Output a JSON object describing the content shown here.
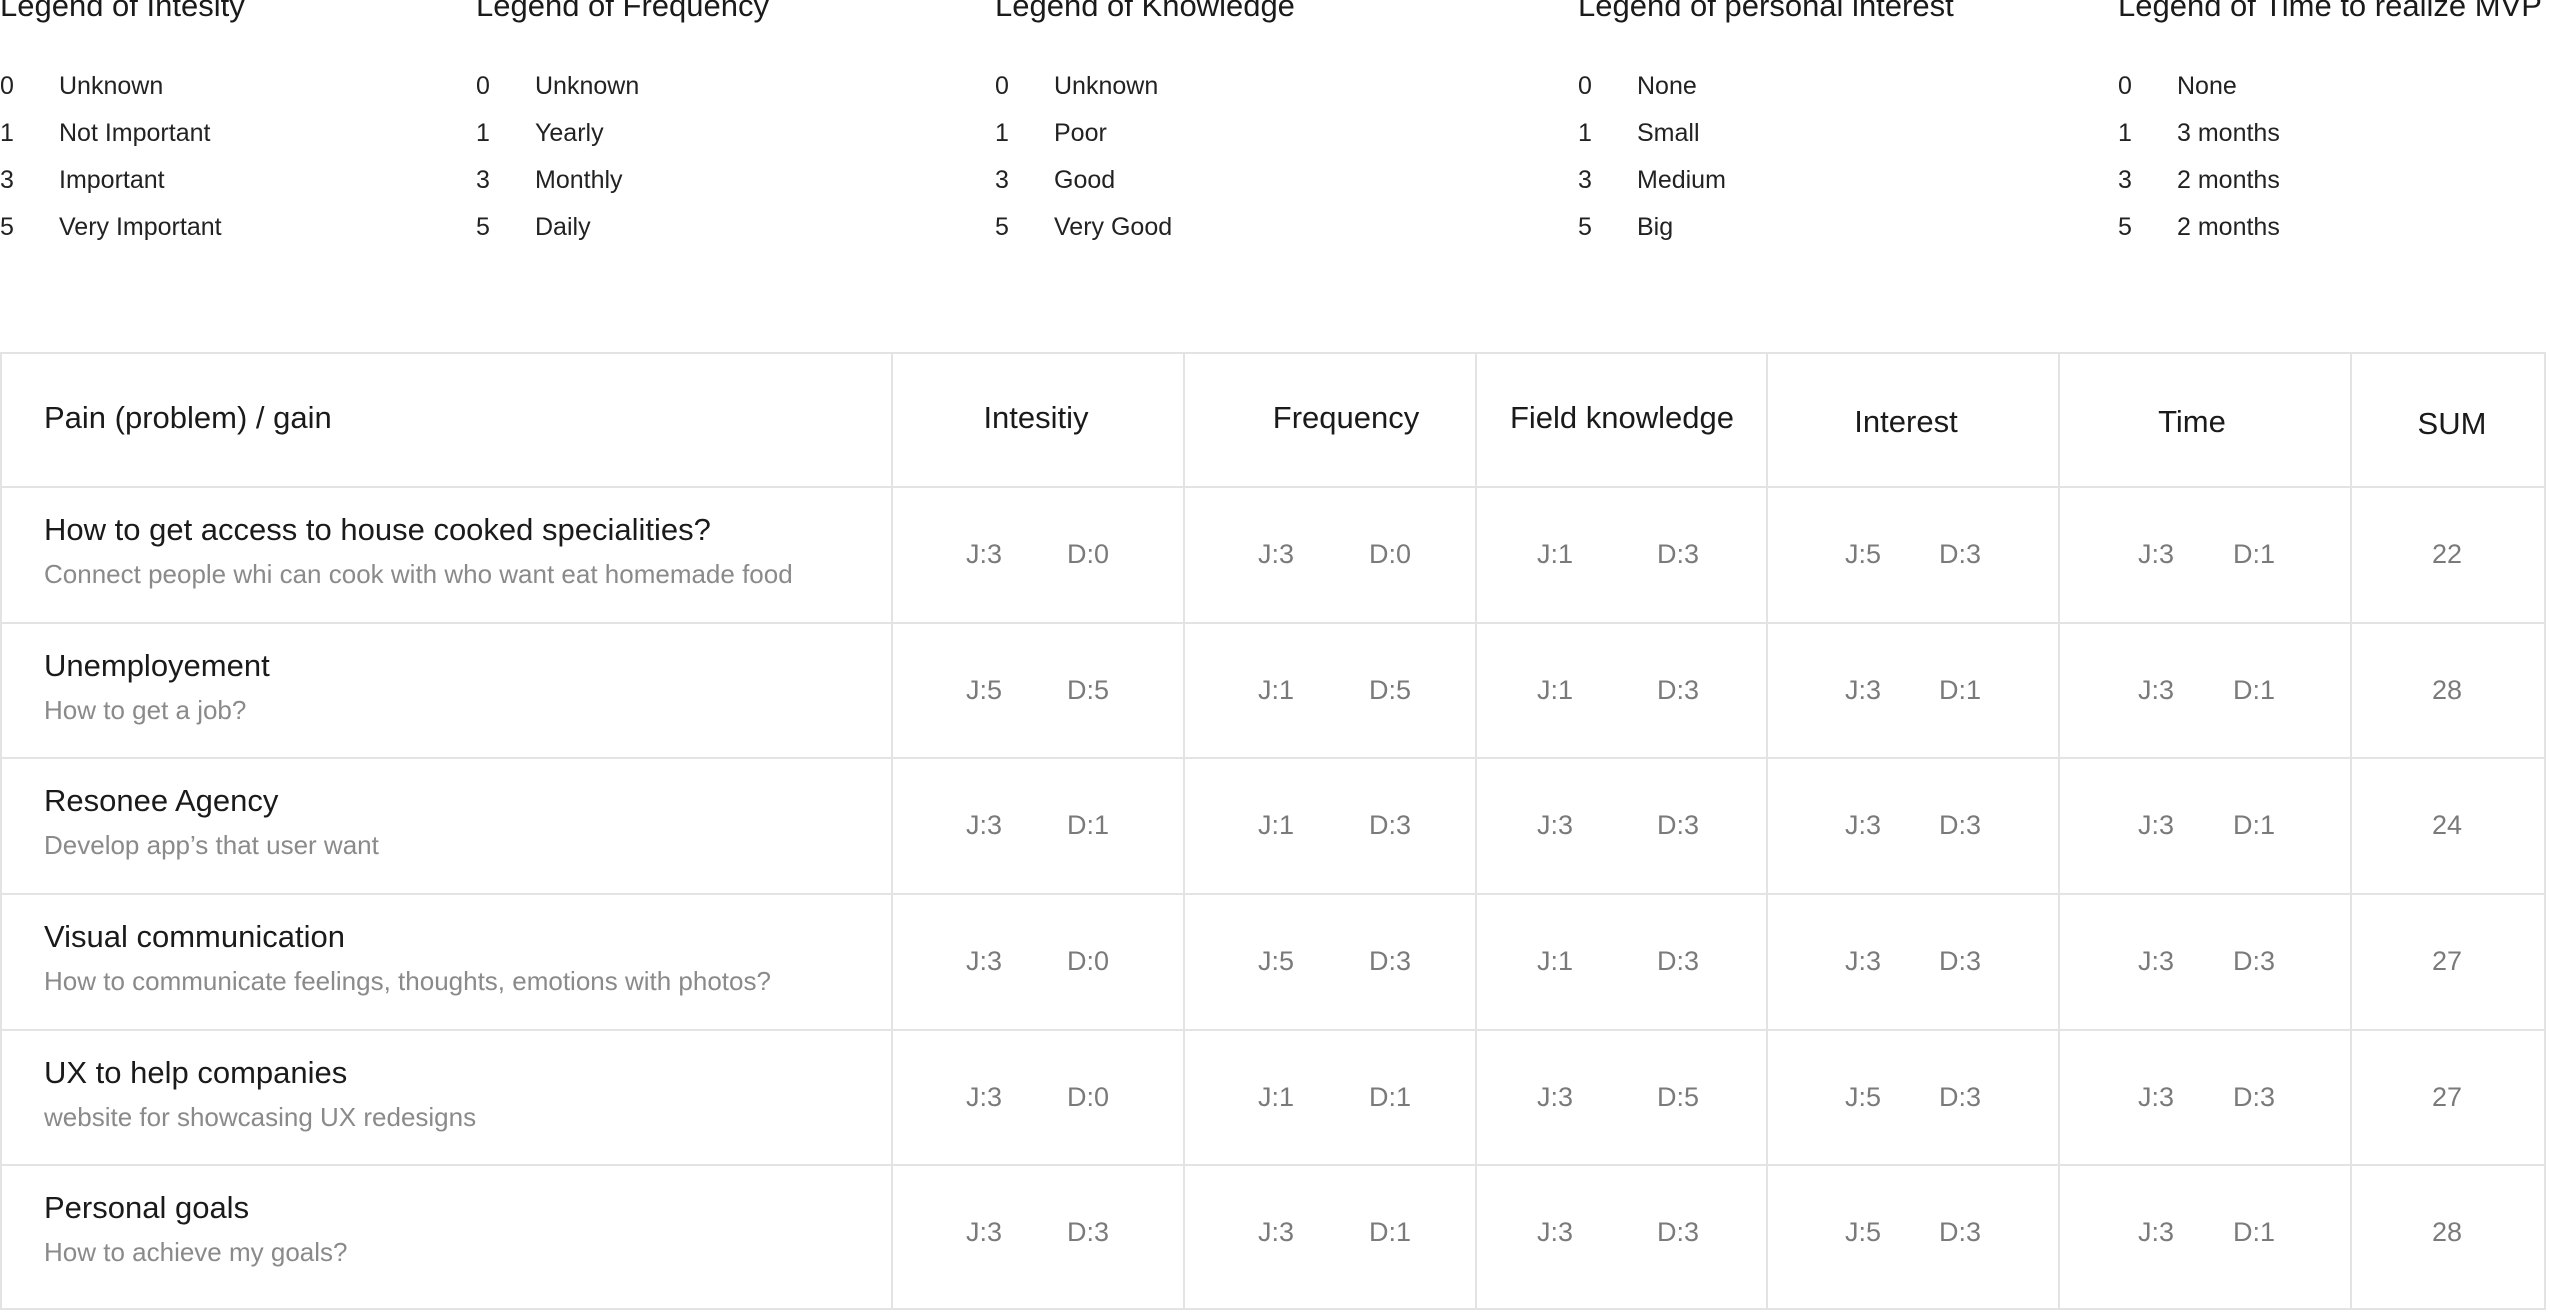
{
  "legends": [
    {
      "title": "Legend of Intesity",
      "items": [
        {
          "value": "0",
          "label": "Unknown"
        },
        {
          "value": "1",
          "label": "Not Important"
        },
        {
          "value": "3",
          "label": "Important"
        },
        {
          "value": "5",
          "label": "Very Important"
        }
      ]
    },
    {
      "title": "Legend of Frequency",
      "items": [
        {
          "value": "0",
          "label": "Unknown"
        },
        {
          "value": "1",
          "label": "Yearly"
        },
        {
          "value": "3",
          "label": "Monthly"
        },
        {
          "value": "5",
          "label": "Daily"
        }
      ]
    },
    {
      "title": "Legend of Knowledge",
      "items": [
        {
          "value": "0",
          "label": "Unknown"
        },
        {
          "value": "1",
          "label": "Poor"
        },
        {
          "value": "3",
          "label": "Good"
        },
        {
          "value": "5",
          "label": "Very Good"
        }
      ]
    },
    {
      "title": "Legend of personal interest",
      "items": [
        {
          "value": "0",
          "label": "None"
        },
        {
          "value": "1",
          "label": "Small"
        },
        {
          "value": "3",
          "label": "Medium"
        },
        {
          "value": "5",
          "label": "Big"
        }
      ]
    },
    {
      "title": "Legend of Time to realize MVP",
      "items": [
        {
          "value": "0",
          "label": "None"
        },
        {
          "value": "1",
          "label": "3 months"
        },
        {
          "value": "3",
          "label": "2 months"
        },
        {
          "value": "5",
          "label": "2 months"
        }
      ]
    }
  ],
  "table": {
    "headers": {
      "problem": "Pain (problem) / gain",
      "intensity": "Intesitiy",
      "frequency": "Frequency",
      "knowledge": "Field knowledge",
      "interest": "Interest",
      "time": "Time",
      "sum": "SUM"
    },
    "rows": [
      {
        "title": "How to get access to house cooked specialities?",
        "subtitle": "Connect people whi can cook with who want eat homemade food",
        "intensity": [
          "J:3",
          "D:0"
        ],
        "frequency": [
          "J:3",
          "D:0"
        ],
        "knowledge": [
          "J:1",
          "D:3"
        ],
        "interest": [
          "J:5",
          "D:3"
        ],
        "time": [
          "J:3",
          "D:1"
        ],
        "sum": "22"
      },
      {
        "title": "Unemployement",
        "subtitle": "How to get a job?",
        "intensity": [
          "J:5",
          "D:5"
        ],
        "frequency": [
          "J:1",
          "D:5"
        ],
        "knowledge": [
          "J:1",
          "D:3"
        ],
        "interest": [
          "J:3",
          "D:1"
        ],
        "time": [
          "J:3",
          "D:1"
        ],
        "sum": "28"
      },
      {
        "title": "Resonee Agency",
        "subtitle": "Develop app’s that user want",
        "intensity": [
          "J:3",
          "D:1"
        ],
        "frequency": [
          "J:1",
          "D:3"
        ],
        "knowledge": [
          "J:3",
          "D:3"
        ],
        "interest": [
          "J:3",
          "D:3"
        ],
        "time": [
          "J:3",
          "D:1"
        ],
        "sum": "24"
      },
      {
        "title": "Visual communication",
        "subtitle": "How to communicate feelings, thoughts, emotions with photos?",
        "intensity": [
          "J:3",
          "D:0"
        ],
        "frequency": [
          "J:5",
          "D:3"
        ],
        "knowledge": [
          "J:1",
          "D:3"
        ],
        "interest": [
          "J:3",
          "D:3"
        ],
        "time": [
          "J:3",
          "D:3"
        ],
        "sum": "27"
      },
      {
        "title": "UX to help companies",
        "subtitle": "website for showcasing UX redesigns",
        "intensity": [
          "J:3",
          "D:0"
        ],
        "frequency": [
          "J:1",
          "D:1"
        ],
        "knowledge": [
          "J:3",
          "D:5"
        ],
        "interest": [
          "J:5",
          "D:3"
        ],
        "time": [
          "J:3",
          "D:3"
        ],
        "sum": "27"
      },
      {
        "title": "Personal goals",
        "subtitle": "How to achieve my goals?",
        "intensity": [
          "J:3",
          "D:3"
        ],
        "frequency": [
          "J:3",
          "D:1"
        ],
        "knowledge": [
          "J:3",
          "D:3"
        ],
        "interest": [
          "J:5",
          "D:3"
        ],
        "time": [
          "J:3",
          "D:1"
        ],
        "sum": "28"
      }
    ]
  }
}
